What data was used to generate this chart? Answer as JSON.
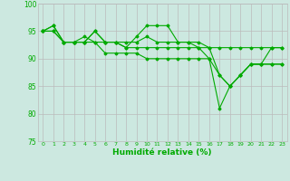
{
  "xlabel": "Humidité relative (%)",
  "ylabel": "",
  "background_color": "#cce8e0",
  "grid_color": "#bbbbbb",
  "line_color": "#00aa00",
  "xlim": [
    -0.5,
    23.5
  ],
  "ylim": [
    75,
    100
  ],
  "xticks": [
    0,
    1,
    2,
    3,
    4,
    5,
    6,
    7,
    8,
    9,
    10,
    11,
    12,
    13,
    14,
    15,
    16,
    17,
    18,
    19,
    20,
    21,
    22,
    23
  ],
  "yticks": [
    75,
    80,
    85,
    90,
    95,
    100
  ],
  "series": [
    [
      95,
      96,
      93,
      93,
      93,
      95,
      93,
      93,
      92,
      94,
      96,
      96,
      96,
      93,
      93,
      92,
      92,
      87,
      85,
      87,
      89,
      89,
      92,
      92
    ],
    [
      95,
      96,
      93,
      93,
      94,
      93,
      93,
      93,
      93,
      93,
      94,
      93,
      93,
      93,
      93,
      93,
      92,
      92,
      92,
      92,
      92,
      92,
      92,
      92
    ],
    [
      95,
      95,
      93,
      93,
      93,
      95,
      93,
      93,
      92,
      92,
      92,
      92,
      92,
      92,
      92,
      92,
      90,
      87,
      85,
      87,
      89,
      89,
      89,
      89
    ],
    [
      95,
      95,
      93,
      93,
      93,
      93,
      91,
      91,
      91,
      91,
      90,
      90,
      90,
      90,
      90,
      90,
      90,
      81,
      85,
      87,
      89,
      89,
      89,
      89
    ]
  ]
}
